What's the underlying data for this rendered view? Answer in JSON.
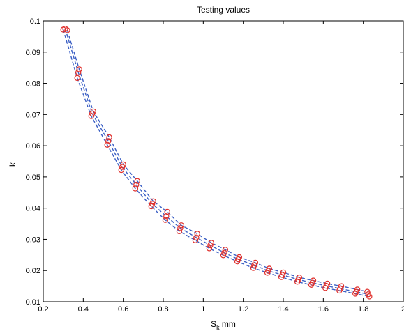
{
  "chart_data": {
    "type": "line",
    "title": "Testing values",
    "xlabel": {
      "main": "S",
      "sub": "k",
      "suffix": " mm"
    },
    "ylabel": "k",
    "xlim": [
      0.2,
      2.0
    ],
    "ylim": [
      0.01,
      0.1
    ],
    "x_ticks": [
      0.2,
      0.4,
      0.6,
      0.8,
      1.0,
      1.2,
      1.4,
      1.6,
      1.8,
      2.0
    ],
    "x_tick_labels": [
      "0.2",
      "0.4",
      "0.6",
      "0.8",
      "1",
      "1.2",
      "1.4",
      "1.6",
      "1.8",
      "2"
    ],
    "y_ticks": [
      0.01,
      0.02,
      0.03,
      0.04,
      0.05,
      0.06,
      0.07,
      0.08,
      0.09,
      0.1
    ],
    "y_tick_labels": [
      "0.01",
      "0.02",
      "0.03",
      "0.04",
      "0.05",
      "0.06",
      "0.07",
      "0.08",
      "0.09",
      "0.1"
    ],
    "grid": false,
    "colors": {
      "line": "#3b5fc4",
      "marker": "#e0302c"
    },
    "series": [
      {
        "line_style": "dashed",
        "marker": "circle",
        "x": [
          0.3,
          0.37,
          0.44,
          0.52,
          0.59,
          0.66,
          0.74,
          0.81,
          0.88,
          0.96,
          1.03,
          1.1,
          1.17,
          1.25,
          1.32,
          1.39,
          1.47,
          1.54,
          1.61,
          1.68,
          1.76,
          1.83
        ],
        "y": [
          0.0972,
          0.0817,
          0.0695,
          0.0603,
          0.0522,
          0.0463,
          0.0406,
          0.0362,
          0.0326,
          0.0297,
          0.0271,
          0.0249,
          0.0229,
          0.0208,
          0.0193,
          0.0179,
          0.0164,
          0.0154,
          0.0144,
          0.0136,
          0.0126,
          0.0117
        ]
      },
      {
        "line_style": "dashed",
        "marker": "circle",
        "x": [
          0.31,
          0.375,
          0.445,
          0.525,
          0.595,
          0.665,
          0.745,
          0.815,
          0.885,
          0.965,
          1.035,
          1.105,
          1.175,
          1.255,
          1.325,
          1.395,
          1.475,
          1.545,
          1.615,
          1.685,
          1.765,
          1.825
        ],
        "y": [
          0.0975,
          0.0835,
          0.0703,
          0.0615,
          0.0532,
          0.0475,
          0.0414,
          0.0374,
          0.0336,
          0.0306,
          0.0281,
          0.0257,
          0.0236,
          0.0217,
          0.0199,
          0.0186,
          0.0171,
          0.0161,
          0.0151,
          0.0142,
          0.0132,
          0.0124
        ]
      },
      {
        "line_style": "dashed",
        "marker": "circle",
        "x": [
          0.32,
          0.38,
          0.45,
          0.53,
          0.6,
          0.67,
          0.75,
          0.82,
          0.89,
          0.97,
          1.04,
          1.11,
          1.18,
          1.26,
          1.33,
          1.4,
          1.48,
          1.55,
          1.62,
          1.69,
          1.77,
          1.82
        ],
        "y": [
          0.097,
          0.0845,
          0.071,
          0.0627,
          0.054,
          0.0487,
          0.0422,
          0.0388,
          0.0345,
          0.0318,
          0.0289,
          0.0267,
          0.0243,
          0.0225,
          0.0206,
          0.0194,
          0.0178,
          0.0168,
          0.0158,
          0.015,
          0.0139,
          0.0132
        ]
      }
    ]
  }
}
